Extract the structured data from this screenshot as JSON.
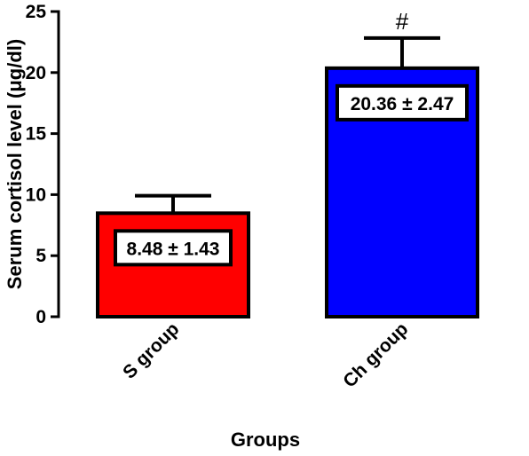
{
  "chart_data": {
    "type": "bar",
    "categories": [
      "S group",
      "Ch group"
    ],
    "values": [
      8.48,
      20.36
    ],
    "errors": [
      1.43,
      2.47
    ],
    "data_labels": [
      "8.48 ± 1.43",
      "20.36 ± 2.47"
    ],
    "annotations": [
      "",
      "#"
    ],
    "colors": [
      "#ff0000",
      "#0000ff"
    ],
    "xlabel": "Groups",
    "ylabel": "Serum cortisol level (μg/dl)",
    "ylim": [
      0,
      25
    ],
    "yticks": [
      "0",
      "5",
      "10",
      "15",
      "20",
      "25"
    ],
    "grid": false
  }
}
